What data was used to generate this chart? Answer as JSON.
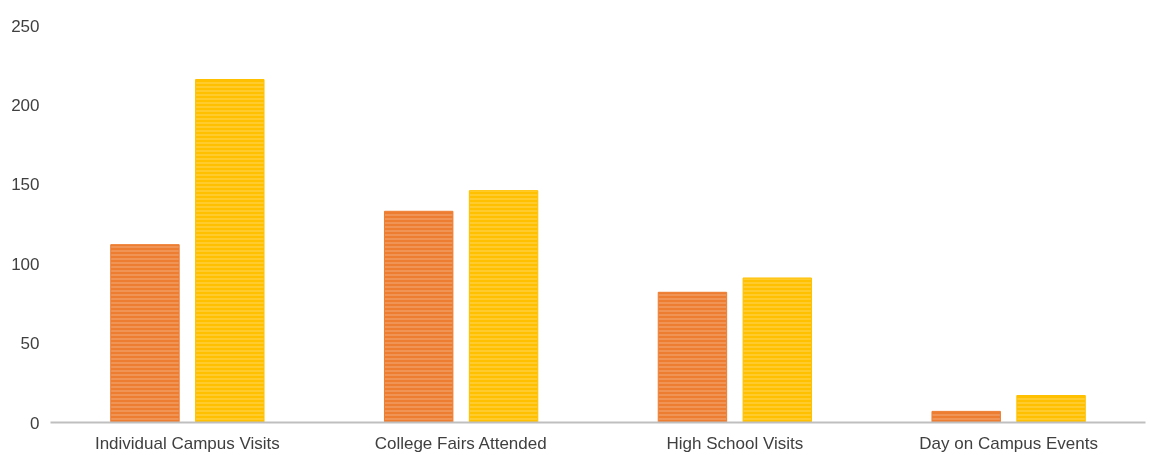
{
  "chart_data": {
    "type": "bar",
    "categories": [
      "Individual Campus Visits",
      "College Fairs Attended",
      "High School Visits",
      "Day on Campus Events"
    ],
    "series": [
      {
        "color": "#ed7d31",
        "values": [
          112,
          133,
          82,
          7
        ]
      },
      {
        "color": "#ffc000",
        "values": [
          216,
          146,
          91,
          17
        ]
      }
    ],
    "ylim": [
      0,
      250
    ],
    "yticks": [
      0,
      50,
      100,
      150,
      200,
      250
    ],
    "grid": false
  }
}
